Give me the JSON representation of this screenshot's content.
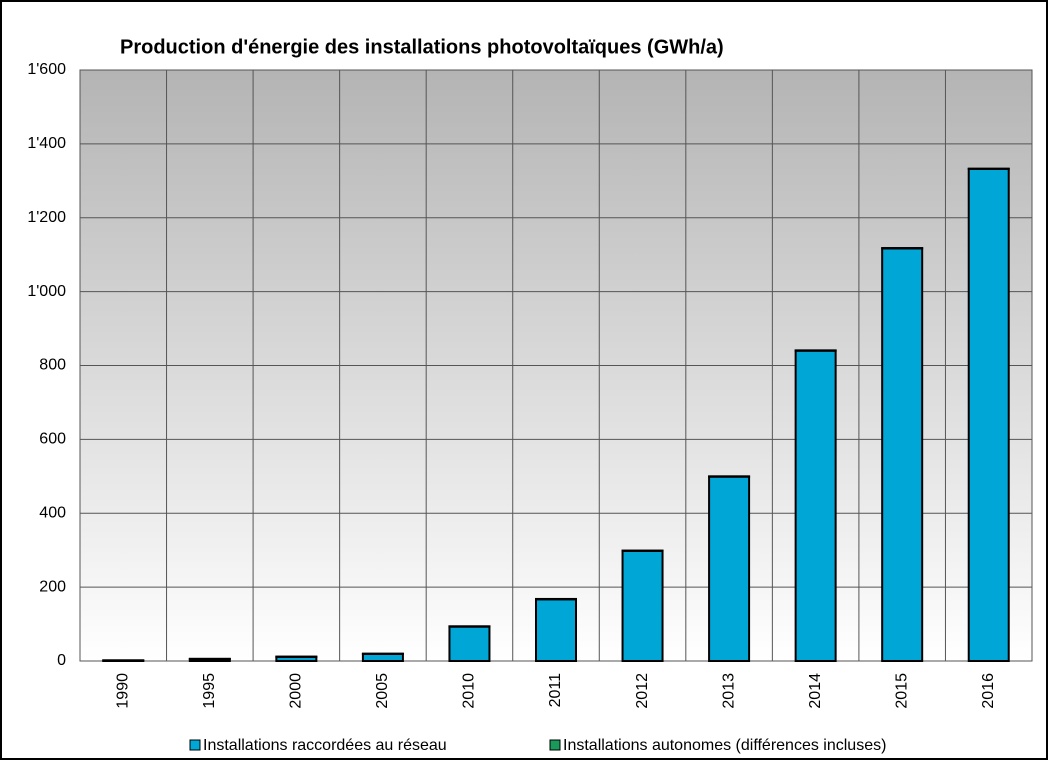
{
  "chart_data": {
    "type": "stacked_bar",
    "title": "Production d'énergie des installations photovoltaïques (GWh/a)",
    "categories": [
      "1990",
      "1995",
      "2000",
      "2005",
      "2010",
      "2011",
      "2012",
      "2013",
      "2014",
      "2015",
      "2016"
    ],
    "series": [
      {
        "name": "Installations raccordées au réseau",
        "color": "#00a6d6",
        "values": [
          1,
          5,
          11,
          19,
          93,
          167,
          298,
          499,
          840,
          1117,
          1332
        ]
      },
      {
        "name": "Installations autonomes (différences incluses)",
        "color": "#1a9a5a",
        "values": [
          1,
          1,
          1,
          1,
          1,
          1,
          1,
          1,
          1,
          1,
          1
        ]
      }
    ],
    "ylim": [
      0,
      1600
    ],
    "yticks": [
      0,
      200,
      400,
      600,
      800,
      {
        "value": 1000,
        "label": "1'000"
      },
      {
        "value": 1200,
        "label": "1'200"
      },
      {
        "value": 1400,
        "label": "1'400"
      },
      {
        "value": 1600,
        "label": "1'600"
      }
    ],
    "grid": true,
    "legend": "bottom"
  }
}
